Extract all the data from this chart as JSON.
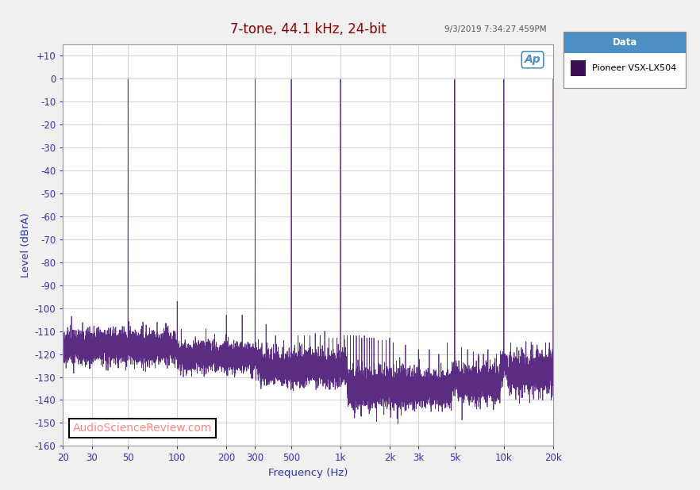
{
  "title": "7-tone, 44.1 kHz, 24-bit",
  "title_color": "#8B0000",
  "xlabel": "Frequency (Hz)",
  "ylabel": "Level (dBrA)",
  "timestamp": "9/3/2019 7:34:27.459PM",
  "watermark": "AudioScienceReview.com",
  "legend_title": "Data",
  "legend_label": "Pioneer VSX-LX504",
  "line_color": "#5B2D82",
  "legend_marker_color": "#3D1055",
  "legend_title_bg": "#4A90C4",
  "ylim": [
    -160,
    15
  ],
  "yticks": [
    10,
    0,
    -10,
    -20,
    -30,
    -40,
    -50,
    -60,
    -70,
    -80,
    -90,
    -100,
    -110,
    -120,
    -130,
    -140,
    -150,
    -160
  ],
  "xtick_positions": [
    20,
    30,
    50,
    100,
    200,
    300,
    500,
    1000,
    2000,
    3000,
    5000,
    10000,
    20000
  ],
  "xtick_labels": [
    "20",
    "30",
    "50",
    "100",
    "200",
    "300",
    "500",
    "1k",
    "2k",
    "3k",
    "5k",
    "10k",
    "20k"
  ],
  "xmin": 20,
  "xmax": 20000,
  "bg_color": "#F0F0F0",
  "plot_bg": "#FFFFFF",
  "tone_freqs": [
    50,
    300,
    500,
    1000,
    5000,
    10000,
    20000
  ],
  "grid_color": "#C8C8D8",
  "n_points": 12000,
  "seed": 42
}
